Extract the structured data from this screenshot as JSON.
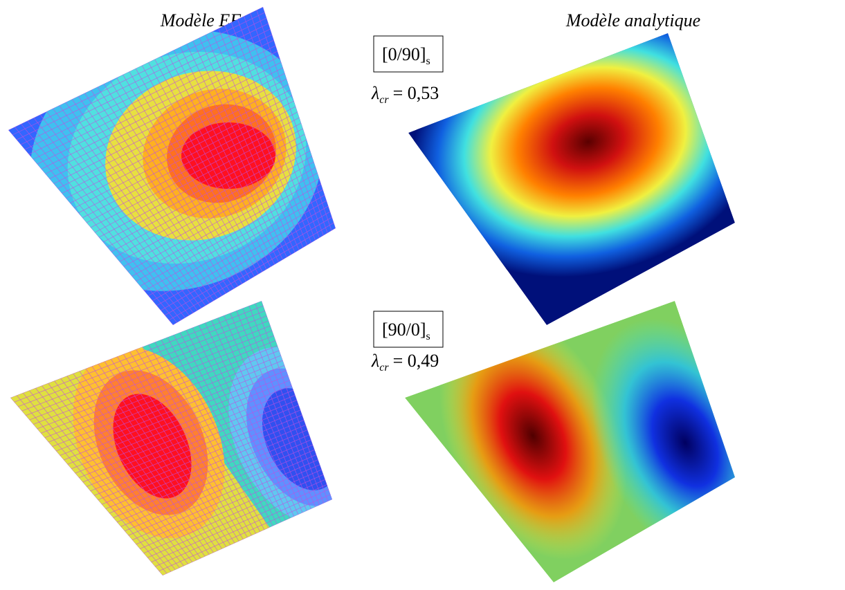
{
  "headers": {
    "left": "Modèle EF",
    "right": "Modèle analytique"
  },
  "rows": [
    {
      "layup": {
        "base": "[0/90]",
        "sub": "s"
      },
      "lambda": {
        "symbol": "λ",
        "sub": "cr",
        "value": "= 0,53"
      }
    },
    {
      "layup": {
        "base": "[90/0]",
        "sub": "s"
      },
      "lambda": {
        "symbol": "λ",
        "sub": "cr",
        "value": "= 0,49"
      }
    }
  ]
}
